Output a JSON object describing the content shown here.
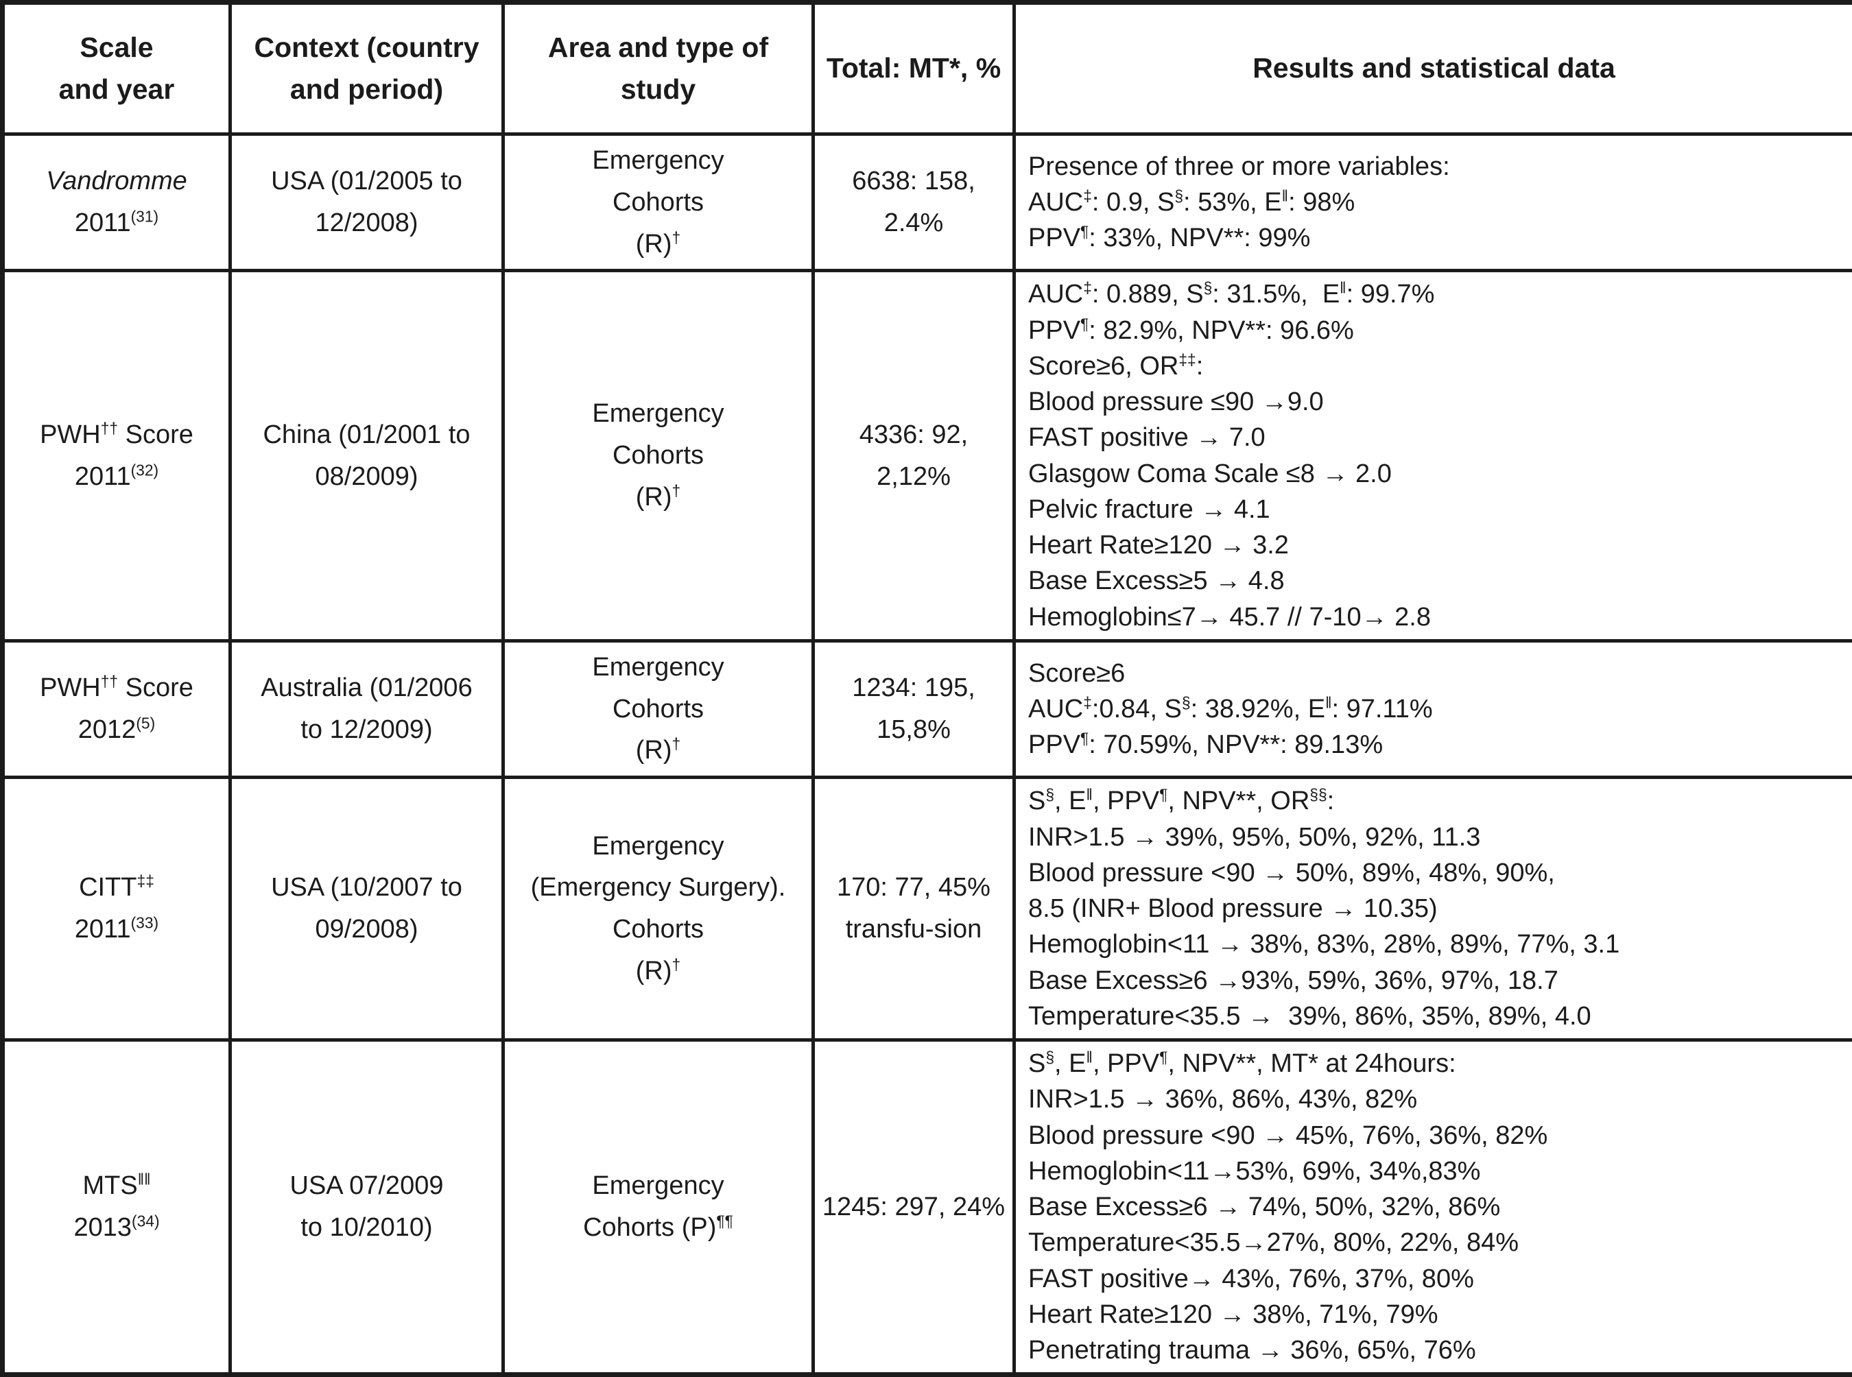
{
  "page": {
    "background_color": "#ffffff",
    "border_color": "#1b1b1b",
    "text_color": "#1b1b1b"
  },
  "table": {
    "header": {
      "columns": [
        {
          "id": "scale-and-year",
          "lines": [
            [
              "Scale"
            ],
            [
              "and year"
            ]
          ]
        },
        {
          "id": "context",
          "lines": [
            [
              "Context (country"
            ],
            [
              "and period)"
            ]
          ]
        },
        {
          "id": "area-and-type",
          "lines": [
            [
              "Area and type of"
            ],
            [
              "study"
            ]
          ]
        },
        {
          "id": "total-mt",
          "lines": [
            [
              "Total: MT*, %"
            ]
          ]
        },
        {
          "id": "results",
          "lines": [
            [
              "Results and statistical data"
            ]
          ]
        }
      ]
    },
    "rows": [
      {
        "cells": [
          [
            [
              {
                "t": "Vandromme",
                "i": true
              }
            ],
            [
              "2011",
              {
                "t": "(31)",
                "sup": true
              }
            ]
          ],
          [
            [
              "USA (01/2005 to"
            ],
            [
              "12/2008)"
            ]
          ],
          [
            [
              "Emergency"
            ],
            [
              "Cohorts"
            ],
            [
              "(R)",
              {
                "t": "†",
                "sup": true
              }
            ]
          ],
          [
            [
              "6638: 158,"
            ],
            [
              "2.4%"
            ]
          ],
          [
            [
              "Presence of three or more variables:"
            ],
            [
              "AUC",
              {
                "t": "‡",
                "sup": true
              },
              ": 0.9, S",
              {
                "t": "§",
                "sup": true
              },
              ": 53%, E",
              {
                "t": "‖",
                "sup": true
              },
              ": 98%"
            ],
            [
              "PPV",
              {
                "t": "¶",
                "sup": true
              },
              ": 33%, NPV**: 99%"
            ]
          ]
        ]
      },
      {
        "cells": [
          [
            [
              "PWH",
              {
                "t": "††",
                "sup": true
              },
              " Score"
            ],
            [
              "2011",
              {
                "t": "(32)",
                "sup": true
              }
            ]
          ],
          [
            [
              "China (01/2001 to"
            ],
            [
              "08/2009)"
            ]
          ],
          [
            [
              "Emergency"
            ],
            [
              "Cohorts"
            ],
            [
              "(R)",
              {
                "t": "†",
                "sup": true
              }
            ]
          ],
          [
            [
              "4336: 92, 2,12%"
            ]
          ],
          [
            [
              "AUC",
              {
                "t": "‡",
                "sup": true
              },
              ": 0.889, S",
              {
                "t": "§",
                "sup": true
              },
              ": 31.5%,  E",
              {
                "t": "‖",
                "sup": true
              },
              ": 99.7%"
            ],
            [
              "PPV",
              {
                "t": "¶",
                "sup": true
              },
              ": 82.9%, NPV**: 96.6%"
            ],
            [
              "Score≥6, OR",
              {
                "t": "‡‡",
                "sup": true
              },
              ":"
            ],
            [
              "Blood pressure ≤90 →9.0"
            ],
            [
              "FAST positive → 7.0"
            ],
            [
              "Glasgow Coma Scale ≤8 → 2.0"
            ],
            [
              "Pelvic fracture → 4.1"
            ],
            [
              "Heart Rate≥120 → 3.2"
            ],
            [
              "Base Excess≥5 → 4.8"
            ],
            [
              "Hemoglobin≤7→ 45.7 // 7-10→ 2.8"
            ]
          ]
        ]
      },
      {
        "cells": [
          [
            [
              "PWH",
              {
                "t": "††",
                "sup": true
              },
              " Score"
            ],
            [
              "2012",
              {
                "t": "(5)",
                "sup": true
              }
            ]
          ],
          [
            [
              "Australia (01/2006"
            ],
            [
              "to 12/2009)"
            ]
          ],
          [
            [
              "Emergency"
            ],
            [
              "Cohorts"
            ],
            [
              "(R)",
              {
                "t": "†",
                "sup": true
              }
            ]
          ],
          [
            [
              "1234: 195,"
            ],
            [
              "15,8%"
            ]
          ],
          [
            [
              "Score≥6"
            ],
            [
              "AUC",
              {
                "t": "‡",
                "sup": true
              },
              ":0.84, S",
              {
                "t": "§",
                "sup": true
              },
              ": 38.92%, E",
              {
                "t": "‖",
                "sup": true
              },
              ": 97.11%"
            ],
            [
              "PPV",
              {
                "t": "¶",
                "sup": true
              },
              ": 70.59%, NPV**: 89.13%"
            ]
          ]
        ]
      },
      {
        "cells": [
          [
            [
              "CITT",
              {
                "t": "‡‡",
                "sup": true
              }
            ],
            [
              "2011",
              {
                "t": "(33)",
                "sup": true
              }
            ]
          ],
          [
            [
              "USA (10/2007 to"
            ],
            [
              "09/2008)"
            ]
          ],
          [
            [
              "Emergency"
            ],
            [
              "(Emergency Surgery)."
            ],
            [
              "Cohorts"
            ],
            [
              "(R)",
              {
                "t": "†",
                "sup": true
              }
            ]
          ],
          [
            [
              "170: 77, 45%"
            ],
            [
              "transfu-sion"
            ]
          ],
          [
            [
              "S",
              {
                "t": "§",
                "sup": true
              },
              ", E",
              {
                "t": "‖",
                "sup": true
              },
              ", PPV",
              {
                "t": "¶",
                "sup": true
              },
              ", NPV**, OR",
              {
                "t": "§§",
                "sup": true
              },
              ":"
            ],
            [
              "INR>1.5 → 39%, 95%, 50%, 92%, 11.3"
            ],
            [
              "Blood pressure <90 → 50%, 89%, 48%, 90%,"
            ],
            [
              "8.5 (INR+ Blood pressure → 10.35)"
            ],
            [
              "Hemoglobin<11 → 38%, 83%, 28%, 89%, 77%, 3.1"
            ],
            [
              "Base Excess≥6 →93%, 59%, 36%, 97%, 18.7"
            ],
            [
              "Temperature<35.5 →  39%, 86%, 35%, 89%, 4.0"
            ]
          ]
        ]
      },
      {
        "cells": [
          [
            [
              "MTS",
              {
                "t": "‖‖",
                "sup": true
              }
            ],
            [
              "2013",
              {
                "t": "(34)",
                "sup": true
              }
            ]
          ],
          [
            [
              "USA 07/2009"
            ],
            [
              "to 10/2010)"
            ]
          ],
          [
            [
              "Emergency"
            ],
            [
              "Cohorts (P)",
              {
                "t": "¶¶",
                "sup": true
              }
            ]
          ],
          [
            [
              "1245: 297, 24%"
            ]
          ],
          [
            [
              "S",
              {
                "t": "§",
                "sup": true
              },
              ", E",
              {
                "t": "‖",
                "sup": true
              },
              ", PPV",
              {
                "t": "¶",
                "sup": true
              },
              ", NPV**, MT* at 24hours:"
            ],
            [
              "INR>1.5 → 36%, 86%, 43%, 82%"
            ],
            [
              "Blood pressure <90 → 45%, 76%, 36%, 82%"
            ],
            [
              "Hemoglobin<11→53%, 69%, 34%,83%"
            ],
            [
              "Base Excess≥6 → 74%, 50%, 32%, 86%"
            ],
            [
              "Temperature<35.5→27%, 80%, 22%, 84%"
            ],
            [
              "FAST positive→ 43%, 76%, 37%, 80%"
            ],
            [
              "Heart Rate≥120 → 38%, 71%, 79%"
            ],
            [
              "Penetrating trauma → 36%, 65%, 76%"
            ]
          ]
        ]
      }
    ]
  }
}
